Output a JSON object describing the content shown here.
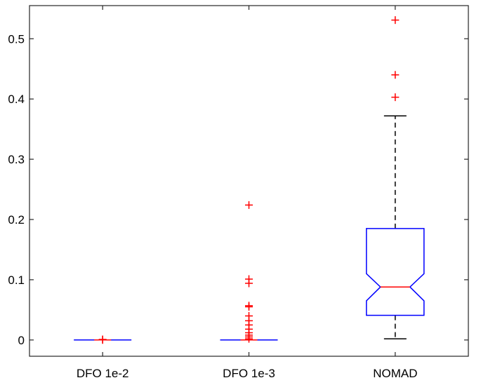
{
  "chart_data": {
    "type": "boxplot",
    "notched": true,
    "categories": [
      "DFO 1e-2",
      "DFO 1e-3",
      "NOMAD"
    ],
    "ylim": [
      -0.027,
      0.555
    ],
    "yticks": [
      0,
      0.1,
      0.2,
      0.3,
      0.4,
      0.5
    ],
    "ytick_labels": [
      "0",
      "0.1",
      "0.2",
      "0.3",
      "0.4",
      "0.5"
    ],
    "title": "",
    "xlabel": "",
    "ylabel": "",
    "grid": false,
    "colors": {
      "box": "#0000ff",
      "median": "#ff0000",
      "outlier": "#ff0000",
      "whisker": "#000000"
    },
    "boxes": [
      {
        "category": "DFO 1e-2",
        "q1": 0.0,
        "median": 0.0,
        "q3": 0.0,
        "notch_low": 0.0,
        "notch_high": 0.0,
        "whisker_low": 0.0,
        "whisker_high": 0.0,
        "outliers": [
          0.0,
          0.0005,
          0.001
        ]
      },
      {
        "category": "DFO 1e-3",
        "q1": 0.0,
        "median": 0.0,
        "q3": 0.0,
        "notch_low": 0.0,
        "notch_high": 0.0,
        "whisker_low": 0.0,
        "whisker_high": 0.0,
        "outliers": [
          0.224,
          0.101,
          0.094,
          0.057,
          0.055,
          0.04,
          0.032,
          0.025,
          0.018,
          0.012,
          0.008,
          0.005,
          0.002
        ]
      },
      {
        "category": "NOMAD",
        "q1": 0.041,
        "median": 0.088,
        "q3": 0.185,
        "notch_low": 0.065,
        "notch_high": 0.11,
        "whisker_low": 0.002,
        "whisker_high": 0.372,
        "outliers": [
          0.403,
          0.44,
          0.531
        ]
      }
    ]
  }
}
